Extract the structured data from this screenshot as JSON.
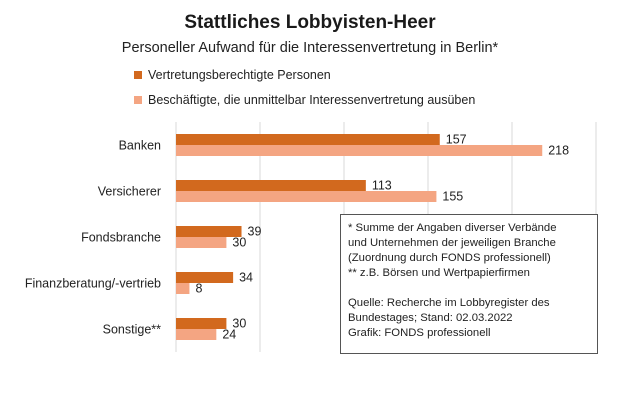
{
  "chart_data": {
    "type": "bar",
    "orientation": "horizontal",
    "title": "Stattliches Lobbyisten-Heer",
    "subtitle": "Personeller Aufwand für die Interessenvertretung in Berlin*",
    "categories": [
      "Banken",
      "Versicherer",
      "Fondsbranche",
      "Finanzberatung/-vertrieb",
      "Sonstige**"
    ],
    "series": [
      {
        "name": "Vertretungsberechtigte Personen",
        "values": [
          157,
          113,
          39,
          34,
          30
        ],
        "color": "#d2691e"
      },
      {
        "name": "Beschäftigte, die unmittelbar Interessenvertretung ausüben",
        "values": [
          218,
          155,
          30,
          8,
          24
        ],
        "color": "#f4a582"
      }
    ],
    "xlim": [
      0,
      250
    ],
    "grid": true,
    "legend_position": "top-left",
    "data_labels": true
  },
  "notes": {
    "line1": "* Summe der Angaben diverser Verbände",
    "line2": "und Unternehmen der jeweiligen Branche",
    "line3": "(Zuordnung durch FONDS professionell)",
    "line4": "** z.B. Börsen und Wertpapierfirmen",
    "line5": "Quelle: Recherche im Lobbyregister des",
    "line6": "Bundestages; Stand: 02.03.2022",
    "line7": "Grafik: FONDS professionell"
  }
}
